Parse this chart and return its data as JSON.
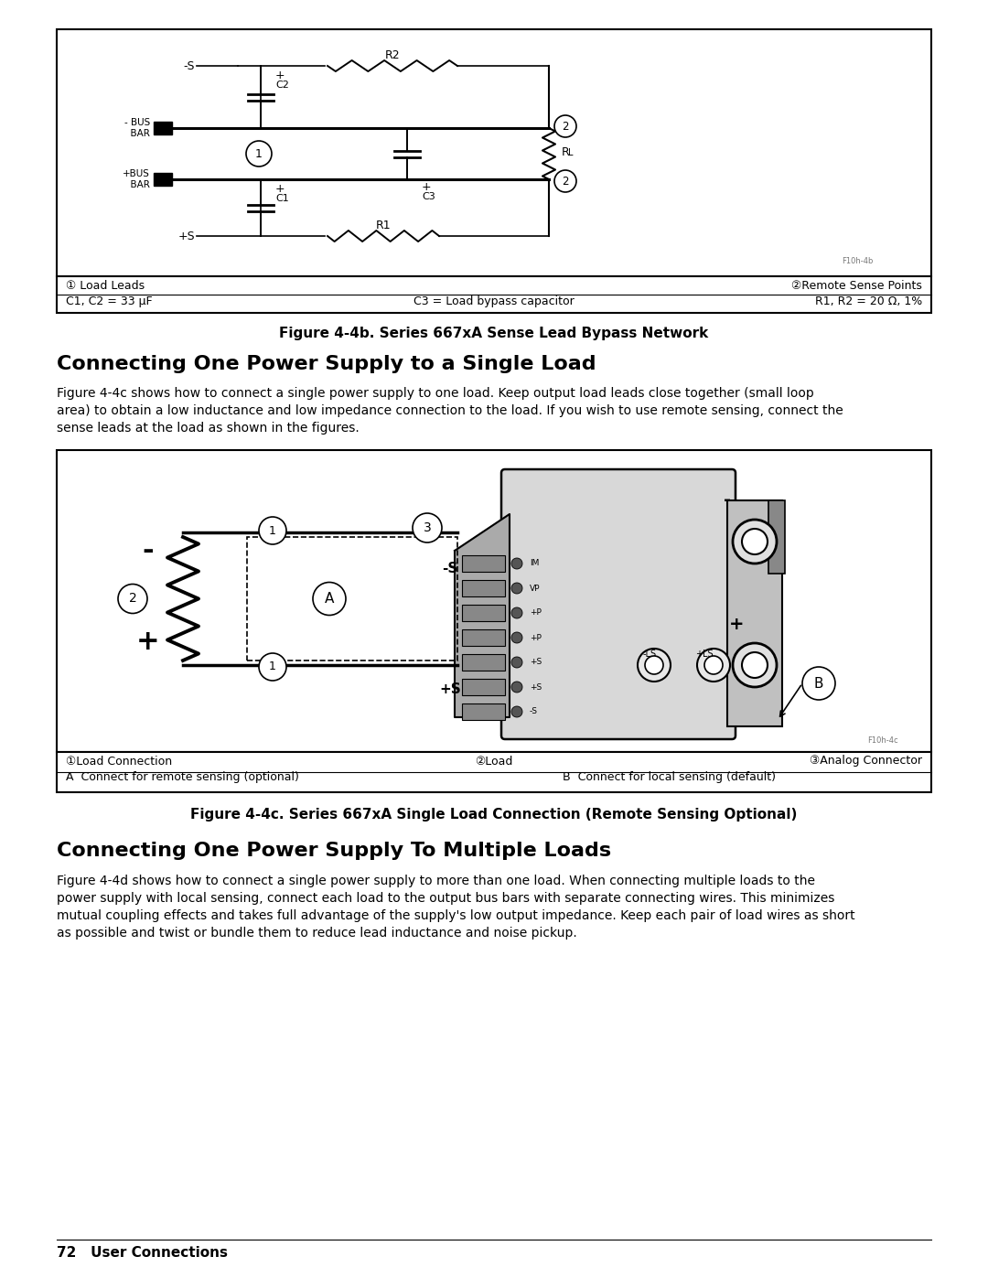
{
  "bg": "#ffffff",
  "title1": "Connecting One Power Supply to a Single Load",
  "title2": "Connecting One Power Supply To Multiple Loads",
  "fig_caption1": "Figure 4-4b. Series 667xA Sense Lead Bypass Network",
  "fig_caption2": "Figure 4-4c. Series 667xA Single Load Connection (Remote Sensing Optional)",
  "para1_line1": "Figure 4-4c shows how to connect a single power supply to one load. Keep output load leads close together (small loop",
  "para1_line2": "area) to obtain a low inductance and low impedance connection to the load. If you wish to use remote sensing, connect the",
  "para1_line3": "sense leads at the load as shown in the figures.",
  "para2_line1": "Figure 4-4d shows how to connect a single power supply to more than one load. When connecting multiple loads to the",
  "para2_line2": "power supply with local sensing, connect each load to the output bus bars with separate connecting wires. This minimizes",
  "para2_line3": "mutual coupling effects and takes full advantage of the supply's low output impedance. Keep each pair of load wires as short",
  "para2_line4": "as possible and twist or bundle them to reduce lead inductance and noise pickup.",
  "footer": "72   User Connections",
  "leg1_r1_left": "① Load Leads",
  "leg1_r1_right": "②Remote Sense Points",
  "leg1_r2_left": "C1, C2 = 33 μF",
  "leg1_r2_mid": "C3 = Load bypass capacitor",
  "leg1_r2_right": "R1, R2 = 20 Ω, 1%",
  "leg2_r1_left": "①Load Connection",
  "leg2_r1_mid": "②Load",
  "leg2_r1_right": "③Analog Connector",
  "leg2_r2_left": "A  Connect for remote sensing (optional)",
  "leg2_r2_right": "B  Connect for local sensing (default)"
}
